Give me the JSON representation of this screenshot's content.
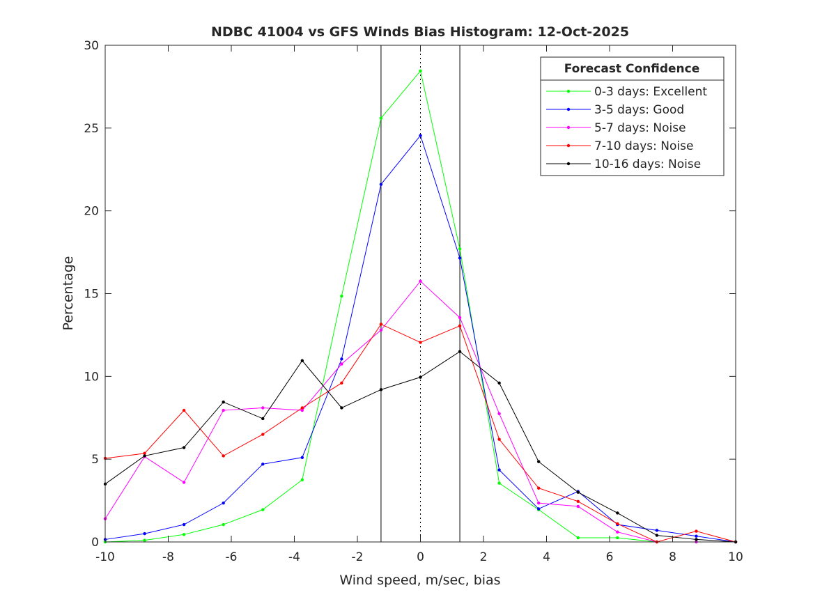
{
  "chart_data": {
    "type": "line",
    "title": "NDBC 41004 vs GFS Winds Bias Histogram: 12-Oct-2025",
    "xlabel": "Wind speed, m/sec, bias",
    "ylabel": "Percentage",
    "xlim": [
      -10,
      10
    ],
    "ylim": [
      0,
      30
    ],
    "xticks": [
      -10,
      -8,
      -6,
      -4,
      -2,
      0,
      2,
      4,
      6,
      8,
      10
    ],
    "yticks": [
      0,
      5,
      10,
      15,
      20,
      25,
      30
    ],
    "grid": false,
    "vertical_lines": [
      {
        "x": -1.25,
        "style": "solid"
      },
      {
        "x": 0,
        "style": "dotted"
      },
      {
        "x": 1.25,
        "style": "solid"
      }
    ],
    "legend": {
      "title": "Forecast Confidence",
      "placement": "top-right"
    },
    "x": [
      -10,
      -8.75,
      -7.5,
      -6.25,
      -5,
      -3.75,
      -2.5,
      -1.25,
      0,
      1.25,
      2.5,
      3.75,
      5,
      6.25,
      7.5,
      8.75,
      10
    ],
    "series": [
      {
        "name": "0-3 days: Excellent",
        "color": "#00ff00",
        "values": [
          0,
          0.1,
          0.45,
          1.05,
          1.95,
          3.75,
          14.85,
          25.6,
          28.45,
          17.7,
          3.55,
          1.95,
          0.25,
          0.25,
          0,
          0,
          0
        ]
      },
      {
        "name": "3-5 days: Good",
        "color": "#0000ff",
        "values": [
          0.15,
          0.5,
          1.05,
          2.35,
          4.7,
          5.1,
          11.05,
          21.6,
          24.55,
          17.15,
          4.35,
          2.0,
          3.05,
          1.05,
          0.7,
          0.35,
          0
        ]
      },
      {
        "name": "5-7 days: Noise",
        "color": "#ff00ff",
        "values": [
          1.4,
          5.15,
          3.6,
          7.95,
          8.1,
          7.95,
          10.75,
          12.8,
          15.75,
          13.55,
          7.75,
          2.35,
          2.15,
          0.6,
          0,
          0,
          0
        ]
      },
      {
        "name": "7-10 days: Noise",
        "color": "#ff0000",
        "values": [
          5.05,
          5.35,
          7.95,
          5.2,
          6.5,
          8.1,
          9.6,
          13.15,
          12.05,
          13.05,
          6.2,
          3.25,
          2.45,
          1.1,
          0,
          0.65,
          0
        ]
      },
      {
        "name": "10-16 days: Noise",
        "color": "#000000",
        "values": [
          3.5,
          5.2,
          5.7,
          8.45,
          7.45,
          10.95,
          8.1,
          9.2,
          9.95,
          11.5,
          9.6,
          4.85,
          3.0,
          1.75,
          0.4,
          0.15,
          0
        ]
      }
    ]
  }
}
